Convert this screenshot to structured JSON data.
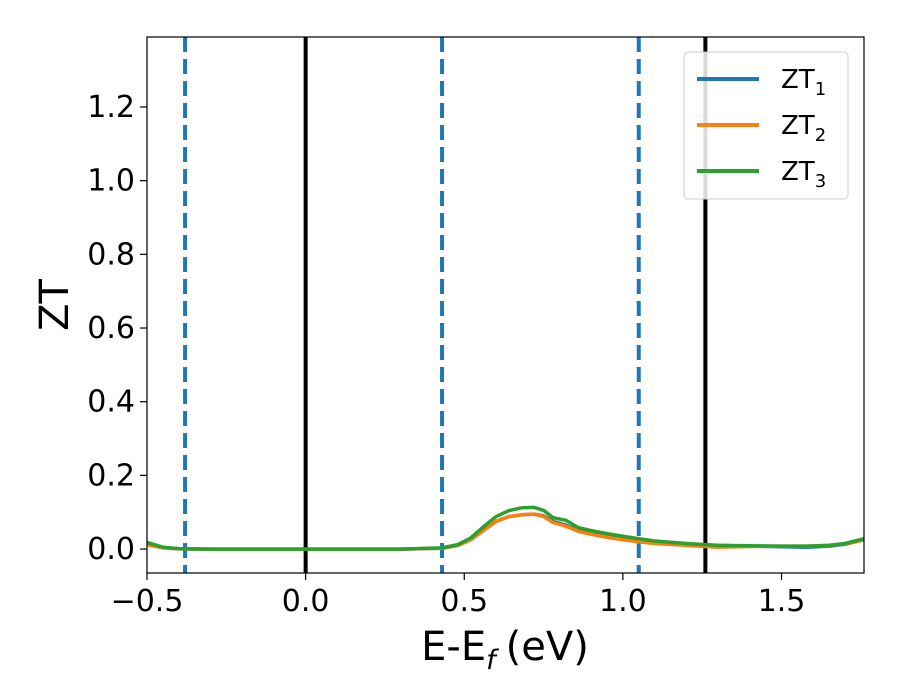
{
  "chart_data": {
    "type": "line",
    "xlabel": "E-E",
    "xlabel_sub": "f",
    "xlabel_unit": "(eV)",
    "ylabel": "ZT",
    "xlim": [
      -0.5,
      1.76
    ],
    "ylim": [
      -0.065,
      1.39
    ],
    "grid": false,
    "legend_position": "top-right",
    "xticks": [
      -0.5,
      0.0,
      0.5,
      1.0,
      1.5
    ],
    "xtick_labels": [
      "−0.5",
      "0.0",
      "0.5",
      "1.0",
      "1.5"
    ],
    "yticks": [
      0.0,
      0.2,
      0.4,
      0.6,
      0.8,
      1.0,
      1.2
    ],
    "ytick_labels": [
      "0.0",
      "0.2",
      "0.4",
      "0.6",
      "0.8",
      "1.0",
      "1.2"
    ],
    "vertical_lines": [
      {
        "x": -0.38,
        "style": "dashed",
        "color": "#1f77b4"
      },
      {
        "x": 0.0,
        "style": "solid",
        "color": "#000000"
      },
      {
        "x": 0.43,
        "style": "dashed",
        "color": "#1f77b4"
      },
      {
        "x": 1.05,
        "style": "dashed",
        "color": "#1f77b4"
      },
      {
        "x": 1.26,
        "style": "solid",
        "color": "#000000"
      }
    ],
    "series": [
      {
        "name": "ZT",
        "sub": "1",
        "color": "#1f77b4",
        "x": [
          -0.5,
          -0.45,
          -0.4,
          -0.3,
          0.0,
          0.3,
          0.43,
          0.48,
          0.52,
          0.56,
          0.6,
          0.64,
          0.68,
          0.72,
          0.75,
          0.78,
          0.82,
          0.86,
          0.9,
          0.95,
          1.0,
          1.05,
          1.1,
          1.2,
          1.3,
          1.4,
          1.5,
          1.58,
          1.65,
          1.7,
          1.76
        ],
        "y": [
          0.015,
          0.004,
          0.001,
          0.0,
          0.0,
          0.0,
          0.002,
          0.01,
          0.025,
          0.05,
          0.075,
          0.088,
          0.093,
          0.095,
          0.09,
          0.075,
          0.065,
          0.05,
          0.042,
          0.035,
          0.028,
          0.022,
          0.018,
          0.013,
          0.01,
          0.008,
          0.006,
          0.005,
          0.008,
          0.013,
          0.025
        ]
      },
      {
        "name": "ZT",
        "sub": "2",
        "color": "#ff7f0e",
        "x": [
          -0.5,
          -0.45,
          -0.4,
          -0.3,
          0.0,
          0.3,
          0.43,
          0.48,
          0.52,
          0.56,
          0.6,
          0.64,
          0.68,
          0.72,
          0.75,
          0.78,
          0.82,
          0.86,
          0.9,
          0.95,
          1.0,
          1.05,
          1.1,
          1.2,
          1.3,
          1.4,
          1.5,
          1.58,
          1.65,
          1.7,
          1.76
        ],
        "y": [
          0.012,
          0.003,
          0.001,
          0.0,
          0.0,
          0.0,
          0.002,
          0.01,
          0.025,
          0.05,
          0.075,
          0.088,
          0.093,
          0.095,
          0.088,
          0.072,
          0.062,
          0.048,
          0.04,
          0.032,
          0.025,
          0.02,
          0.015,
          0.01,
          0.005,
          0.007,
          0.008,
          0.008,
          0.01,
          0.014,
          0.025
        ]
      },
      {
        "name": "ZT",
        "sub": "3",
        "color": "#2ca02c",
        "x": [
          -0.5,
          -0.45,
          -0.4,
          -0.3,
          0.0,
          0.3,
          0.43,
          0.48,
          0.52,
          0.56,
          0.6,
          0.64,
          0.68,
          0.72,
          0.75,
          0.78,
          0.82,
          0.86,
          0.9,
          0.95,
          1.0,
          1.05,
          1.1,
          1.2,
          1.3,
          1.4,
          1.5,
          1.58,
          1.65,
          1.7,
          1.76
        ],
        "y": [
          0.018,
          0.005,
          0.001,
          0.0,
          0.0,
          0.0,
          0.003,
          0.012,
          0.03,
          0.06,
          0.088,
          0.104,
          0.112,
          0.113,
          0.105,
          0.085,
          0.078,
          0.058,
          0.05,
          0.042,
          0.035,
          0.028,
          0.022,
          0.015,
          0.01,
          0.009,
          0.008,
          0.008,
          0.01,
          0.015,
          0.028
        ]
      }
    ]
  }
}
